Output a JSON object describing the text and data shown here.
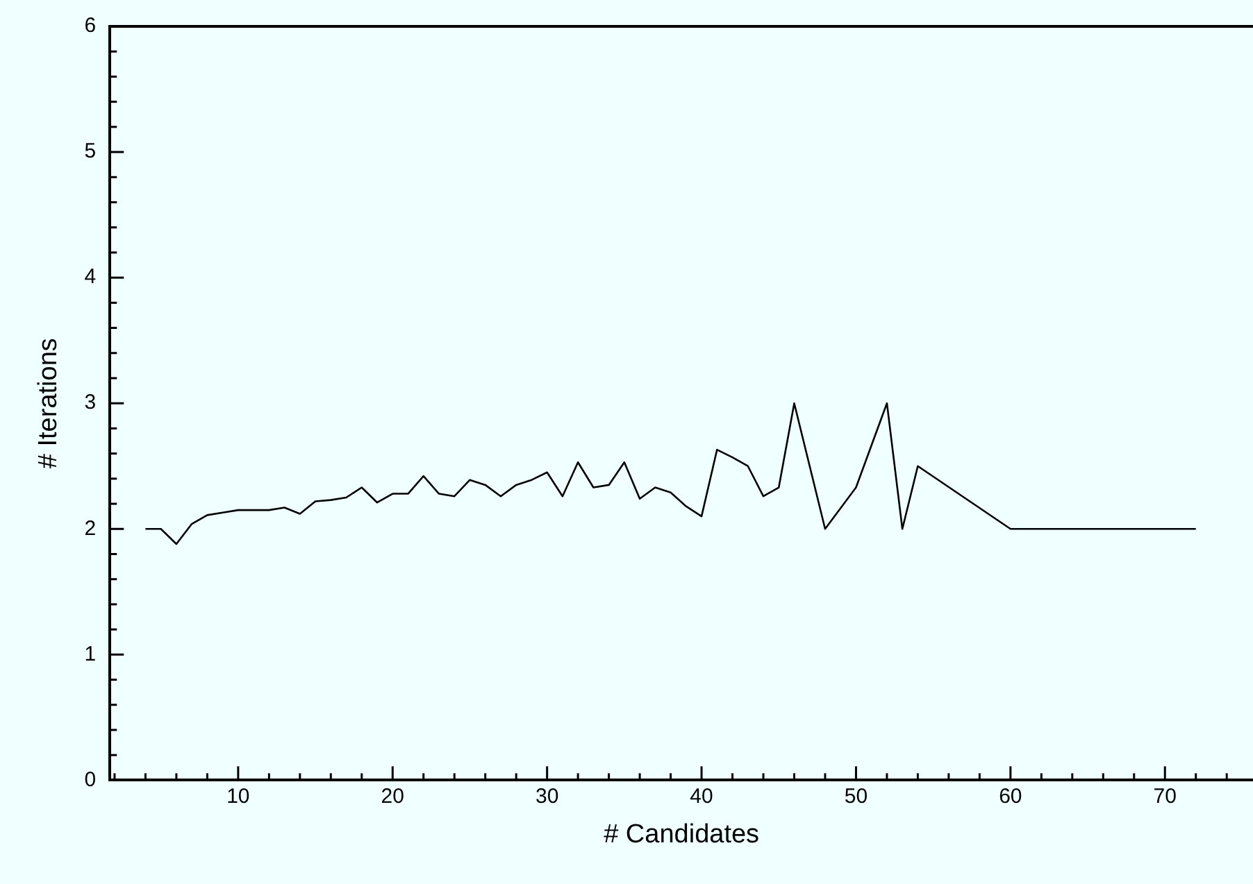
{
  "chart_data": {
    "type": "line",
    "xlabel": "# Candidates",
    "ylabel": "# Iterations",
    "x": [
      4,
      5,
      6,
      7,
      8,
      9,
      10,
      11,
      12,
      13,
      14,
      15,
      16,
      17,
      18,
      19,
      20,
      21,
      22,
      23,
      24,
      25,
      26,
      27,
      28,
      29,
      30,
      31,
      32,
      33,
      34,
      35,
      36,
      37,
      38,
      39,
      40,
      41,
      42,
      43,
      44,
      45,
      46,
      48,
      50,
      52,
      53,
      54,
      60,
      72
    ],
    "series": [
      {
        "color": "#000000",
        "values": [
          2,
          2,
          1.88,
          2.04,
          2.11,
          2.13,
          2.15,
          2.15,
          2.15,
          2.17,
          2.12,
          2.22,
          2.23,
          2.25,
          2.33,
          2.21,
          2.28,
          2.28,
          2.42,
          2.28,
          2.26,
          2.39,
          2.35,
          2.26,
          2.35,
          2.39,
          2.45,
          2.26,
          2.53,
          2.33,
          2.35,
          2.53,
          2.24,
          2.33,
          2.29,
          2.18,
          2.1,
          2.63,
          2.57,
          2.5,
          2.26,
          2.33,
          3,
          2,
          2.33,
          3,
          2,
          2.5,
          2,
          2
        ]
      }
    ],
    "xlim": [
      1.7,
      75.7
    ],
    "ylim": [
      0,
      6
    ],
    "xticks": [
      {
        "value": 2,
        "label": null
      },
      {
        "value": 4,
        "label": null
      },
      {
        "value": 6,
        "label": null
      },
      {
        "value": 8,
        "label": null
      },
      10,
      {
        "value": 12,
        "label": null
      },
      {
        "value": 14,
        "label": null
      },
      {
        "value": 16,
        "label": null
      },
      {
        "value": 18,
        "label": null
      },
      20,
      {
        "value": 22,
        "label": null
      },
      {
        "value": 24,
        "label": null
      },
      {
        "value": 26,
        "label": null
      },
      {
        "value": 28,
        "label": null
      },
      30,
      {
        "value": 32,
        "label": null
      },
      {
        "value": 34,
        "label": null
      },
      {
        "value": 36,
        "label": null
      },
      {
        "value": 38,
        "label": null
      },
      40,
      {
        "value": 42,
        "label": null
      },
      {
        "value": 44,
        "label": null
      },
      {
        "value": 46,
        "label": null
      },
      {
        "value": 48,
        "label": null
      },
      50,
      {
        "value": 52,
        "label": null
      },
      {
        "value": 54,
        "label": null
      },
      {
        "value": 56,
        "label": null
      },
      {
        "value": 58,
        "label": null
      },
      60,
      {
        "value": 62,
        "label": null
      },
      {
        "value": 64,
        "label": null
      },
      {
        "value": 66,
        "label": null
      },
      {
        "value": 68,
        "label": null
      },
      70,
      {
        "value": 72,
        "label": null
      },
      {
        "value": 74,
        "label": null
      }
    ],
    "yticks": [
      0,
      {
        "value": 0.2,
        "label": null
      },
      {
        "value": 0.4,
        "label": null
      },
      {
        "value": 0.6,
        "label": null
      },
      {
        "value": 0.8,
        "label": null
      },
      1,
      {
        "value": 1.2,
        "label": null
      },
      {
        "value": 1.4,
        "label": null
      },
      {
        "value": 1.6,
        "label": null
      },
      {
        "value": 1.8,
        "label": null
      },
      2,
      {
        "value": 2.2,
        "label": null
      },
      {
        "value": 2.4,
        "label": null
      },
      {
        "value": 2.6,
        "label": null
      },
      {
        "value": 2.8,
        "label": null
      },
      3,
      {
        "value": 3.2,
        "label": null
      },
      {
        "value": 3.4,
        "label": null
      },
      {
        "value": 3.6,
        "label": null
      },
      {
        "value": 3.8,
        "label": null
      },
      4,
      {
        "value": 4.2,
        "label": null
      },
      {
        "value": 4.4,
        "label": null
      },
      {
        "value": 4.6,
        "label": null
      },
      {
        "value": 4.8,
        "label": null
      },
      5,
      {
        "value": 5.2,
        "label": null
      },
      {
        "value": 5.4,
        "label": null
      },
      {
        "value": 5.6,
        "label": null
      },
      {
        "value": 5.8,
        "label": null
      },
      6
    ],
    "grid": false,
    "legend": false,
    "marker": "none",
    "line_style": "solid"
  }
}
